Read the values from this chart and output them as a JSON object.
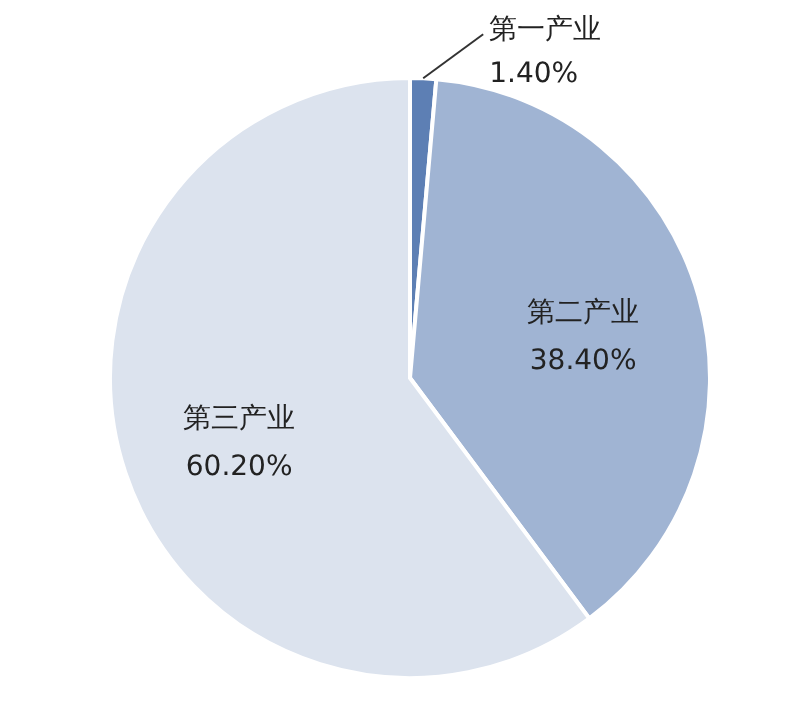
{
  "chart_data": {
    "type": "pie",
    "categories": [
      "第一产业",
      "第二产业",
      "第三产业"
    ],
    "values": [
      1.4,
      38.4,
      60.2
    ],
    "value_labels": [
      "1.40%",
      "38.40%",
      "60.20%"
    ],
    "colors": [
      "#5d7fb4",
      "#a0b4d3",
      "#dce3ee"
    ],
    "legend": false
  }
}
